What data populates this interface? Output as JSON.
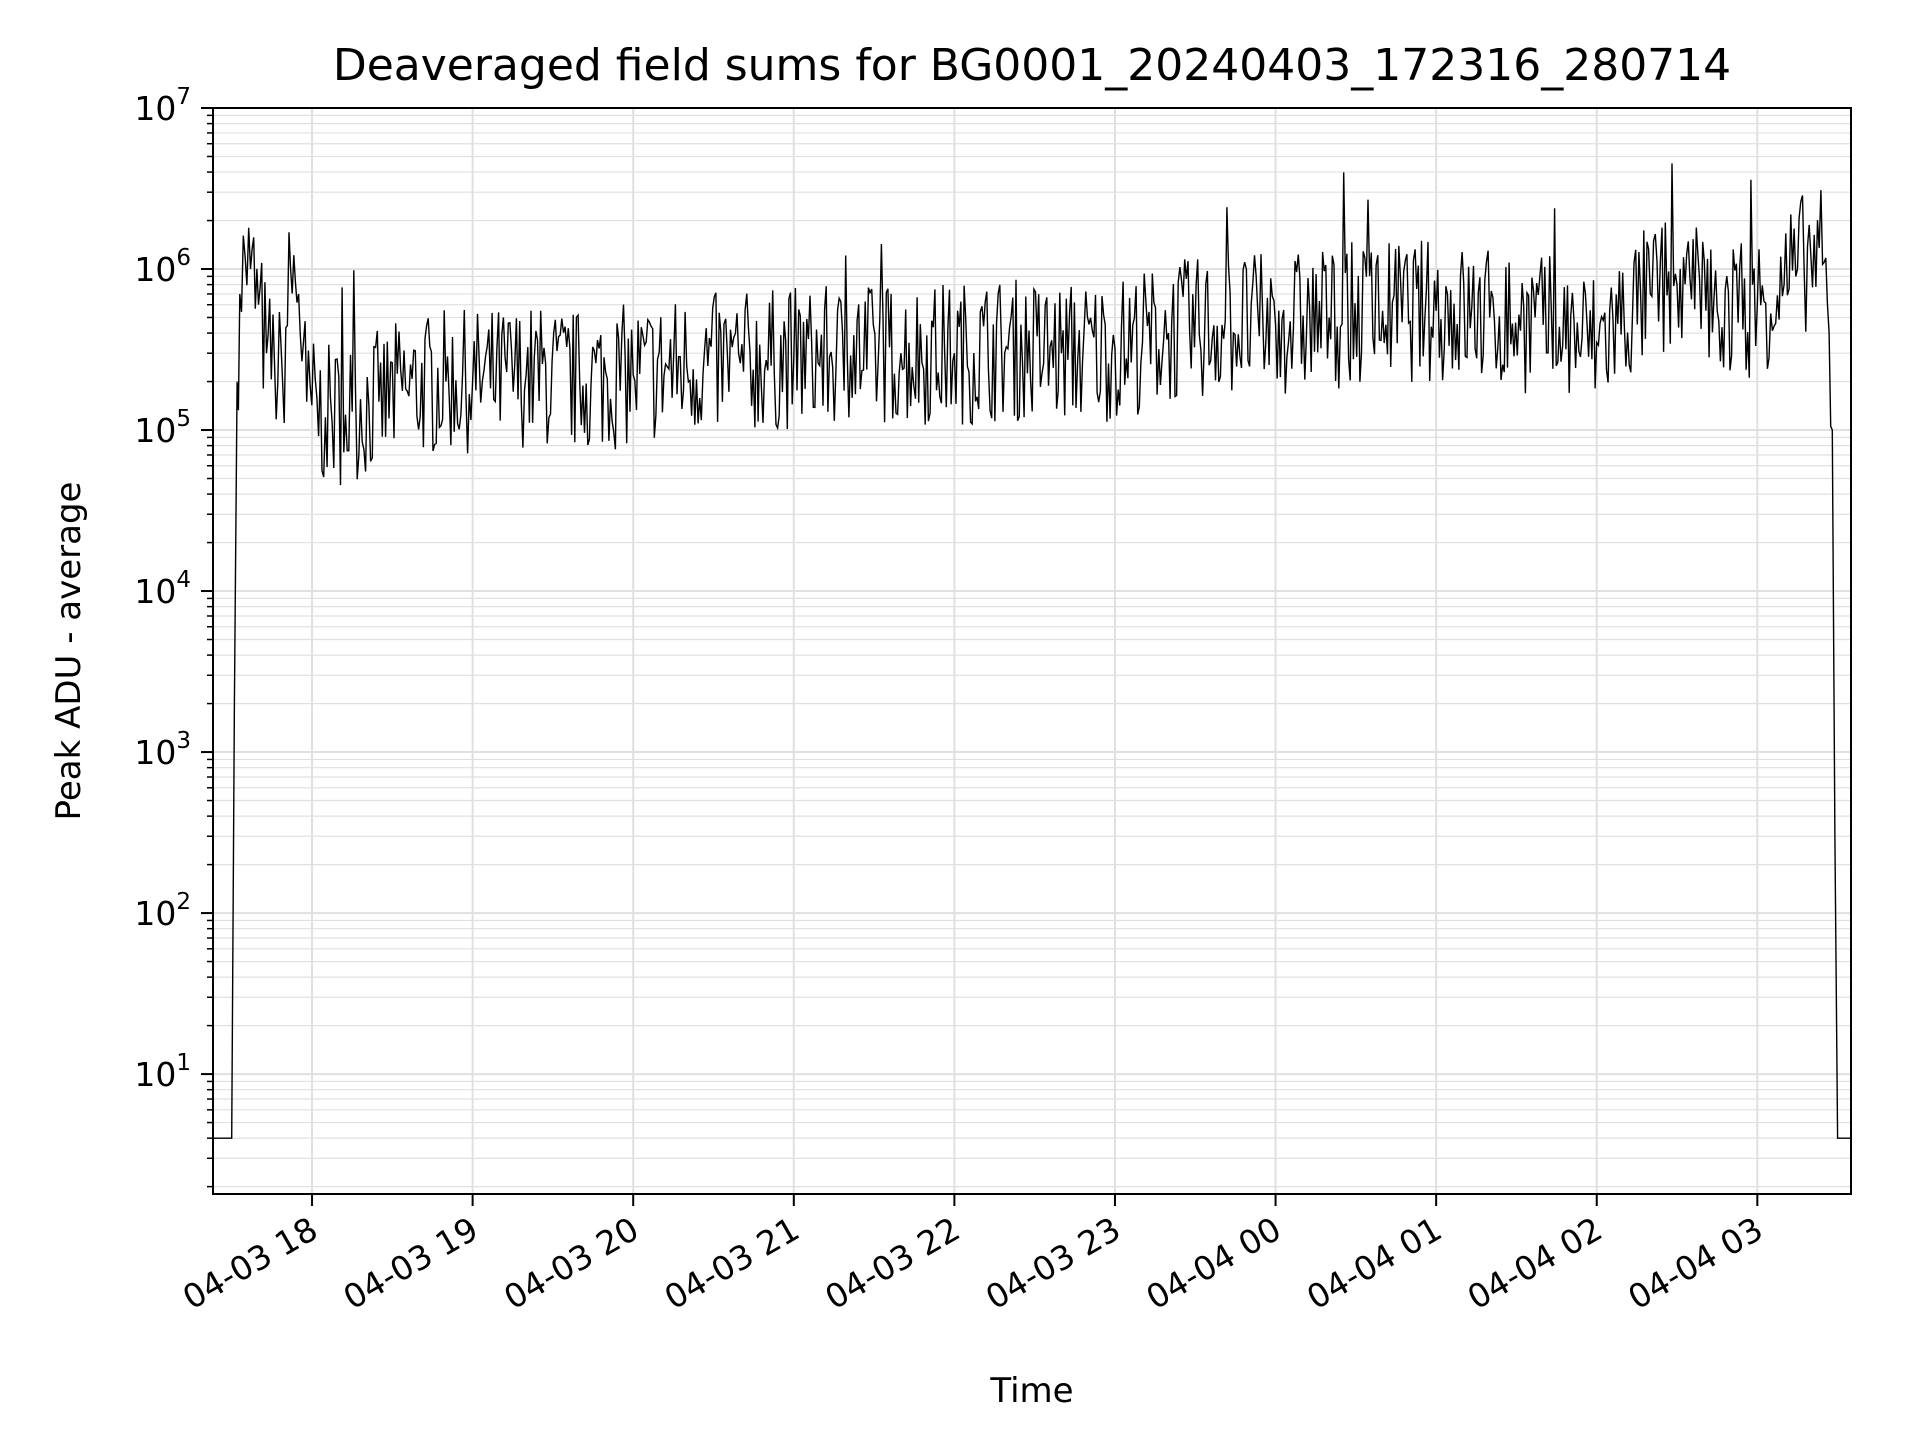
{
  "chart_data": {
    "type": "line",
    "title": "Deaveraged field sums for BG0001_20240403_172316_280714",
    "xlabel": "Time",
    "ylabel": "Peak ADU - average",
    "y_scale": "log",
    "ylim": [
      1.8,
      10000000
    ],
    "xlim": [
      "2024-04-03 17:23",
      "2024-04-04 03:35"
    ],
    "grid": true,
    "line_color": "#000000",
    "grid_color": "#e0e0e0",
    "x_ticks": [
      {
        "label": "04-03 18",
        "t": "2024-04-03 18:00"
      },
      {
        "label": "04-03 19",
        "t": "2024-04-03 19:00"
      },
      {
        "label": "04-03 20",
        "t": "2024-04-03 20:00"
      },
      {
        "label": "04-03 21",
        "t": "2024-04-03 21:00"
      },
      {
        "label": "04-03 22",
        "t": "2024-04-03 22:00"
      },
      {
        "label": "04-03 23",
        "t": "2024-04-03 23:00"
      },
      {
        "label": "04-04 00",
        "t": "2024-04-04 00:00"
      },
      {
        "label": "04-04 01",
        "t": "2024-04-04 01:00"
      },
      {
        "label": "04-04 02",
        "t": "2024-04-04 02:00"
      },
      {
        "label": "04-04 03",
        "t": "2024-04-04 03:00"
      }
    ],
    "y_ticks": [
      {
        "base": "10",
        "exp": "1",
        "value": 10
      },
      {
        "base": "10",
        "exp": "2",
        "value": 100
      },
      {
        "base": "10",
        "exp": "3",
        "value": 1000
      },
      {
        "base": "10",
        "exp": "4",
        "value": 10000
      },
      {
        "base": "10",
        "exp": "5",
        "value": 100000
      },
      {
        "base": "10",
        "exp": "6",
        "value": 1000000
      },
      {
        "base": "10",
        "exp": "7",
        "value": 10000000
      }
    ],
    "series": [
      {
        "x": [
          "2024-04-03 17:23",
          "2024-04-03 17:30",
          "2024-04-03 17:31",
          "2024-04-03 17:32",
          "2024-04-03 17:33",
          "2024-04-03 17:35",
          "2024-04-03 17:37",
          "2024-04-03 17:40",
          "2024-04-03 17:43",
          "2024-04-03 17:46",
          "2024-04-03 17:49",
          "2024-04-03 17:52",
          "2024-04-03 17:55",
          "2024-04-03 17:58",
          "2024-04-03 18:05",
          "2024-04-03 18:15",
          "2024-04-03 18:25",
          "2024-04-03 18:35",
          "2024-04-03 18:50",
          "2024-04-03 19:00",
          "2024-04-03 19:20",
          "2024-04-03 19:40",
          "2024-04-03 20:00",
          "2024-04-03 20:20",
          "2024-04-03 20:40",
          "2024-04-03 21:00",
          "2024-04-03 21:20",
          "2024-04-03 21:40",
          "2024-04-03 22:00",
          "2024-04-03 22:20",
          "2024-04-03 22:40",
          "2024-04-03 23:00",
          "2024-04-03 23:20",
          "2024-04-03 23:40",
          "2024-04-04 00:00",
          "2024-04-04 00:20",
          "2024-04-04 00:40",
          "2024-04-04 01:00",
          "2024-04-04 01:20",
          "2024-04-04 01:40",
          "2024-04-04 02:00",
          "2024-04-04 02:20",
          "2024-04-04 02:30",
          "2024-04-04 02:45",
          "2024-04-04 03:00",
          "2024-04-04 03:10",
          "2024-04-04 03:15",
          "2024-04-04 03:20",
          "2024-04-04 03:25",
          "2024-04-04 03:28",
          "2024-04-04 03:29",
          "2024-04-04 03:30",
          "2024-04-04 03:35"
        ],
        "y": [
          4,
          4,
          2000,
          200000,
          700000,
          1200000,
          1000000,
          600000,
          300000,
          250000,
          200000,
          1000000,
          700000,
          150000,
          120000,
          130000,
          150000,
          180000,
          200000,
          200000,
          220000,
          200000,
          220000,
          250000,
          260000,
          280000,
          280000,
          300000,
          300000,
          320000,
          300000,
          320000,
          400000,
          450000,
          450000,
          500000,
          550000,
          550000,
          500000,
          450000,
          350000,
          700000,
          800000,
          550000,
          600000,
          800000,
          1000000,
          1200000,
          1100000,
          100000,
          300,
          4,
          4
        ]
      }
    ]
  }
}
